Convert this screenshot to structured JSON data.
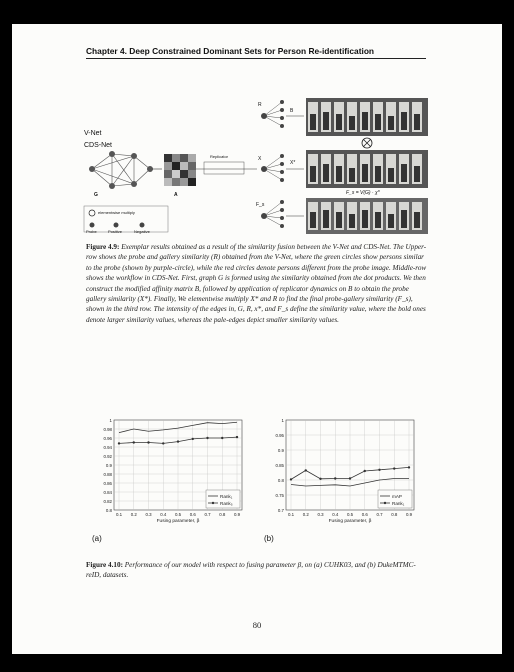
{
  "header": {
    "chapter_title": "Chapter 4.  Deep Constrained Dominant Sets for Person Re-identification"
  },
  "figure_49": {
    "labels": {
      "vnet": "V-Net",
      "cdsnet": "CDS-Net",
      "g": "G",
      "a": "A",
      "b": "B",
      "x": "X",
      "xs": "X*",
      "r": "R",
      "fs": "F_s",
      "replicator": "Replicator",
      "formula": "F_s = V(G) · χ*"
    },
    "legend": {
      "multiply": "elementwise multiply",
      "probe": "Probe",
      "positive": "Positive",
      "negative": "Negative"
    },
    "caption_label": "Figure 4.9:",
    "caption_text": "Exemplar results obtained as a result of the similarity fusion between the V-Net and CDS-Net. The Upper-row shows the probe and gallery similarity (R) obtained from the V-Net, where the green circles show persons similar to the probe (shown by purple-circle), while the red circles denote persons different from the probe image. Middle-row shows the workflow in CDS-Net. First, graph G is formed using the similarity obtained from the dot products. We then construct the modified affinity matrix B, followed by application of replicator dynamics on B to obtain the probe gallery similarity (X*). Finally, We elementwise multiply X* and R to find the final probe-gallery similarity (F_s), shown in the third row. The intensity of the edges in, G, R, x*, and F_s define the similarity value, where the bold ones denote larger similarity values, whereas the pale-edges depict smaller similarity values."
  },
  "chart_data": [
    {
      "type": "line",
      "panel": "(a)",
      "xlabel": "Fusing parameter, β",
      "x": [
        0.1,
        0.2,
        0.3,
        0.4,
        0.5,
        0.6,
        0.7,
        0.8,
        0.9
      ],
      "x_ticks": [
        "0.1",
        "0.2",
        "0.3",
        "0.4",
        "0.5",
        "0.6",
        "0.7",
        "0.8",
        "0.9"
      ],
      "ylim": [
        0.8,
        1.0
      ],
      "y_ticks": [
        "0.8",
        "0.82",
        "0.84",
        "0.86",
        "0.88",
        "0.9",
        "0.92",
        "0.94",
        "0.96",
        "0.98",
        "1"
      ],
      "legend_position": "bottom-right",
      "grid": true,
      "series": [
        {
          "name": "Rank₁",
          "marker": "none",
          "values": [
            0.972,
            0.98,
            0.975,
            0.978,
            0.982,
            0.988,
            0.994,
            0.992,
            0.995
          ]
        },
        {
          "name": "Rank₅",
          "marker": "dot",
          "values": [
            0.948,
            0.95,
            0.95,
            0.948,
            0.952,
            0.958,
            0.96,
            0.96,
            0.962
          ]
        }
      ]
    },
    {
      "type": "line",
      "panel": "(b)",
      "xlabel": "Fusing parameter, β",
      "x": [
        0.1,
        0.2,
        0.3,
        0.4,
        0.5,
        0.6,
        0.7,
        0.8,
        0.9
      ],
      "x_ticks": [
        "0.1",
        "0.2",
        "0.3",
        "0.4",
        "0.5",
        "0.6",
        "0.7",
        "0.8",
        "0.9"
      ],
      "ylim": [
        0.7,
        1.0
      ],
      "y_ticks": [
        "0.7",
        "0.75",
        "0.8",
        "0.85",
        "0.9",
        "0.95",
        "1"
      ],
      "legend_position": "bottom-right",
      "grid": true,
      "series": [
        {
          "name": "mAP",
          "marker": "none",
          "values": [
            0.785,
            0.78,
            0.782,
            0.784,
            0.78,
            0.79,
            0.8,
            0.805,
            0.805
          ]
        },
        {
          "name": "Rank₁",
          "marker": "dot",
          "values": [
            0.802,
            0.832,
            0.804,
            0.805,
            0.805,
            0.83,
            0.834,
            0.838,
            0.842
          ]
        }
      ]
    }
  ],
  "figure_410": {
    "panel_a": "(a)",
    "panel_b": "(b)",
    "caption_label": "Figure 4.10:",
    "caption_text": "Performance of our model with respect to fusing parameter β, on (a) CUHK03, and (b) DukeMTMC-reID, datasets."
  },
  "page_number": "80",
  "colors": {
    "line": "#333333",
    "grid": "#bbbbbb"
  }
}
